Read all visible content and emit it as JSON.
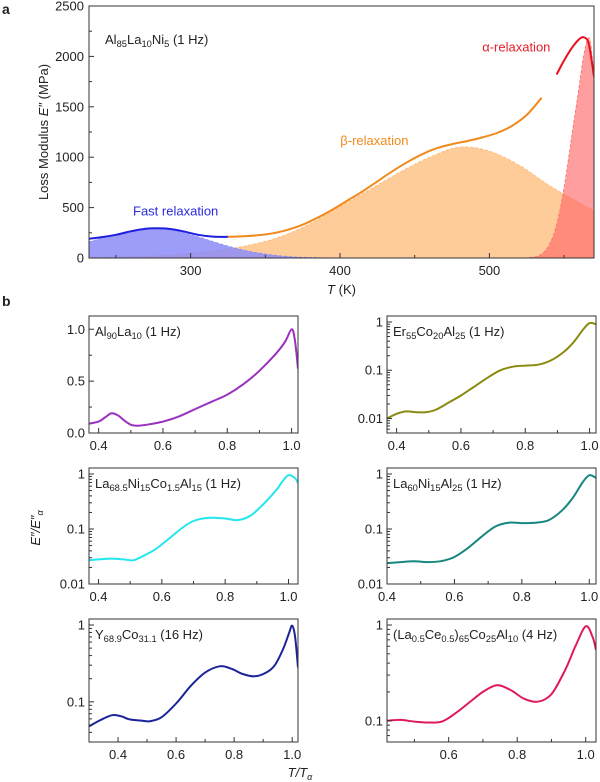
{
  "figure": {
    "panel_labels": [
      "a",
      "b"
    ],
    "shared_ylabel_b": "E″/E″α",
    "shared_xlabel_b": "T/Tα"
  },
  "chart_data": [
    {
      "id": "a",
      "type": "area",
      "title": "Al85La10Ni5 (1 Hz)",
      "title_parts": [
        [
          "Al",
          ""
        ],
        [
          "85",
          "sub"
        ],
        [
          "La",
          ""
        ],
        [
          "10",
          "sub"
        ],
        [
          "Ni",
          ""
        ],
        [
          "5",
          "sub"
        ],
        [
          " (1 Hz)",
          ""
        ]
      ],
      "xlabel": "T (K)",
      "ylabel": "Loss Modulus E″ (MPa)",
      "xlim": [
        232,
        570
      ],
      "ylim": [
        0,
        2500
      ],
      "xticks": [
        300,
        400,
        500
      ],
      "xminor": [
        250,
        350,
        450,
        550
      ],
      "yticks": [
        0,
        500,
        1000,
        1500,
        2000,
        2500
      ],
      "yminor": [
        250,
        750,
        1250,
        1750,
        2250
      ],
      "grid": false,
      "annotations": [
        {
          "text": "Fast relaxation",
          "color": "#2a2ae0",
          "x": 290,
          "y": 420
        },
        {
          "text": "β-relaxation",
          "color": "#f08a1c",
          "x": 423,
          "y": 1120
        },
        {
          "text": "α-relaxation",
          "color": "#e8202a",
          "x": 518,
          "y": 2050
        }
      ],
      "total_curve": {
        "x": [
          232,
          240,
          250,
          260,
          270,
          276,
          285,
          295,
          305,
          315,
          325,
          335,
          345,
          355,
          365,
          375,
          385,
          395,
          405,
          415,
          425,
          435,
          445,
          455,
          465,
          475,
          485,
          495,
          505,
          515,
          525,
          535,
          545,
          550,
          555,
          560,
          563,
          566,
          568,
          570
        ],
        "y": [
          190,
          205,
          230,
          265,
          290,
          295,
          290,
          265,
          230,
          212,
          210,
          215,
          225,
          245,
          280,
          330,
          400,
          480,
          570,
          660,
          760,
          860,
          950,
          1030,
          1090,
          1130,
          1160,
          1195,
          1240,
          1310,
          1420,
          1590,
          1820,
          1960,
          2080,
          2170,
          2190,
          2150,
          2000,
          1800
        ],
        "segments": [
          {
            "name": "fast",
            "color": "#1f1fe0",
            "x_range": [
              232,
              325
            ]
          },
          {
            "name": "beta",
            "color": "#f08a1c",
            "x_range": [
              325,
              540
            ]
          },
          {
            "name": "alpha",
            "color": "#e8101a",
            "x_range": [
              540,
              570
            ]
          }
        ]
      },
      "components": [
        {
          "name": "Fast relaxation",
          "fill": "#8c8cf8",
          "fill_opacity": 0.85,
          "x": [
            232,
            245,
            260,
            275,
            290,
            305,
            320,
            335,
            350,
            365,
            380,
            400
          ],
          "y": [
            160,
            215,
            270,
            295,
            270,
            210,
            140,
            80,
            40,
            15,
            5,
            0
          ]
        },
        {
          "name": "β-relaxation",
          "fill": "#fdb66e",
          "fill_opacity": 0.7,
          "x": [
            232,
            260,
            290,
            320,
            340,
            360,
            380,
            400,
            420,
            440,
            460,
            480,
            500,
            520,
            540,
            560,
            570
          ],
          "y": [
            5,
            12,
            35,
            80,
            130,
            210,
            340,
            510,
            680,
            850,
            1000,
            1100,
            1060,
            920,
            720,
            550,
            470
          ]
        },
        {
          "name": "α-relaxation",
          "fill": "#ff6a6a",
          "fill_opacity": 0.65,
          "x": [
            500,
            520,
            530,
            535,
            540,
            545,
            550,
            555,
            560,
            563,
            566,
            568,
            570
          ],
          "y": [
            0,
            0,
            10,
            40,
            130,
            330,
            700,
            1200,
            1700,
            2000,
            2180,
            2100,
            1800
          ]
        }
      ]
    },
    {
      "id": "b1",
      "type": "line",
      "title_parts": [
        [
          "Al",
          ""
        ],
        [
          "90",
          "sub"
        ],
        [
          "La",
          ""
        ],
        [
          "10",
          "sub"
        ],
        [
          " (1 Hz)",
          ""
        ]
      ],
      "title": "Al90La10 (1 Hz)",
      "color": "#9b30c0",
      "scale": "linear",
      "xlim": [
        0.37,
        1.02
      ],
      "ylim": [
        0.0,
        1.07
      ],
      "xticks": [
        0.4,
        0.6,
        0.8,
        1.0
      ],
      "xtick_labels": [
        "0.4",
        "0.6",
        "0.8",
        "1.0"
      ],
      "yticks": [
        0.0,
        0.5,
        1.0
      ],
      "ytick_labels": [
        "0.0",
        "0.5",
        "1.0"
      ],
      "x": [
        0.37,
        0.4,
        0.42,
        0.44,
        0.46,
        0.48,
        0.5,
        0.52,
        0.55,
        0.6,
        0.65,
        0.7,
        0.75,
        0.8,
        0.85,
        0.9,
        0.95,
        0.98,
        1.0,
        1.01,
        1.02
      ],
      "y": [
        0.09,
        0.11,
        0.15,
        0.19,
        0.17,
        0.12,
        0.08,
        0.07,
        0.08,
        0.11,
        0.16,
        0.23,
        0.3,
        0.37,
        0.47,
        0.6,
        0.76,
        0.88,
        1.0,
        0.9,
        0.62
      ]
    },
    {
      "id": "b2",
      "type": "line",
      "title_parts": [
        [
          "Er",
          ""
        ],
        [
          "55",
          "sub"
        ],
        [
          "Co",
          ""
        ],
        [
          "20",
          "sub"
        ],
        [
          "Al",
          ""
        ],
        [
          "25",
          "sub"
        ],
        [
          " (1 Hz)",
          ""
        ]
      ],
      "title": "Er55Co20Al25 (1 Hz)",
      "color": "#8a8a10",
      "scale": "log",
      "xlim": [
        0.37,
        1.02
      ],
      "ylim": [
        0.005,
        1.0
      ],
      "xticks": [
        0.4,
        0.6,
        0.8,
        1.0
      ],
      "xtick_labels": [
        "0.4",
        "0.6",
        "0.8",
        "1.0"
      ],
      "yticks": [
        0.01,
        0.1,
        1
      ],
      "ytick_labels": [
        "0.01",
        "0.1",
        "1"
      ],
      "x": [
        0.37,
        0.4,
        0.43,
        0.46,
        0.49,
        0.52,
        0.56,
        0.6,
        0.64,
        0.68,
        0.72,
        0.76,
        0.8,
        0.84,
        0.88,
        0.92,
        0.95,
        0.98,
        1.0,
        1.02
      ],
      "y": [
        0.01,
        0.0125,
        0.014,
        0.0135,
        0.0135,
        0.015,
        0.021,
        0.03,
        0.045,
        0.068,
        0.098,
        0.118,
        0.125,
        0.13,
        0.16,
        0.24,
        0.38,
        0.7,
        0.95,
        0.9
      ]
    },
    {
      "id": "b3",
      "type": "line",
      "title_parts": [
        [
          "La",
          ""
        ],
        [
          "68.5",
          "sub"
        ],
        [
          "Ni",
          ""
        ],
        [
          "15",
          "sub"
        ],
        [
          "Co",
          ""
        ],
        [
          "1.5",
          "sub"
        ],
        [
          "Al",
          ""
        ],
        [
          "15",
          "sub"
        ],
        [
          " (1 Hz)",
          ""
        ]
      ],
      "title": "La68.5Ni15Co1.5Al15 (1 Hz)",
      "color": "#22e6f0",
      "scale": "log",
      "xlim": [
        0.37,
        1.03
      ],
      "ylim": [
        0.01,
        1.0
      ],
      "xticks": [
        0.4,
        0.6,
        0.8,
        1.0
      ],
      "xtick_labels": [
        "0.4",
        "0.6",
        "0.8",
        "1.0"
      ],
      "yticks": [
        0.01,
        0.1,
        1
      ],
      "ytick_labels": [
        "0.01",
        "0.1",
        "1"
      ],
      "x": [
        0.37,
        0.4,
        0.44,
        0.48,
        0.51,
        0.54,
        0.58,
        0.62,
        0.66,
        0.7,
        0.75,
        0.8,
        0.84,
        0.88,
        0.92,
        0.96,
        0.98,
        1.0,
        1.02,
        1.03
      ],
      "y": [
        0.027,
        0.028,
        0.029,
        0.028,
        0.027,
        0.032,
        0.043,
        0.065,
        0.1,
        0.14,
        0.16,
        0.155,
        0.145,
        0.175,
        0.28,
        0.5,
        0.72,
        0.95,
        0.85,
        0.68
      ]
    },
    {
      "id": "b4",
      "type": "line",
      "title_parts": [
        [
          "La",
          ""
        ],
        [
          "60",
          "sub"
        ],
        [
          "Ni",
          ""
        ],
        [
          "15",
          "sub"
        ],
        [
          "Al",
          ""
        ],
        [
          "25",
          "sub"
        ],
        [
          " (1 Hz)",
          ""
        ]
      ],
      "title": "La60Ni15Al25 (1 Hz)",
      "color": "#16877e",
      "scale": "log",
      "xlim": [
        0.4,
        1.02
      ],
      "ylim": [
        0.01,
        1.0
      ],
      "xticks": [
        0.4,
        0.6,
        0.8,
        1.0
      ],
      "xtick_labels": [
        "0.4",
        "0.6",
        "0.8",
        "1.0"
      ],
      "yticks": [
        0.01,
        0.1,
        1
      ],
      "ytick_labels": [
        "0.01",
        "0.1",
        "1"
      ],
      "x": [
        0.4,
        0.44,
        0.48,
        0.52,
        0.56,
        0.6,
        0.64,
        0.68,
        0.72,
        0.76,
        0.8,
        0.84,
        0.88,
        0.92,
        0.95,
        0.98,
        1.0,
        1.02
      ],
      "y": [
        0.024,
        0.025,
        0.026,
        0.025,
        0.026,
        0.031,
        0.045,
        0.072,
        0.11,
        0.13,
        0.128,
        0.13,
        0.145,
        0.22,
        0.36,
        0.7,
        0.95,
        0.85
      ]
    },
    {
      "id": "b5",
      "type": "line",
      "title_parts": [
        [
          "Y",
          ""
        ],
        [
          "68.9",
          "sub"
        ],
        [
          "Co",
          ""
        ],
        [
          "31.1",
          "sub"
        ],
        [
          " (16 Hz)",
          ""
        ]
      ],
      "title": "Y68.9Co31.1 (16 Hz)",
      "color": "#1a239a",
      "scale": "log",
      "xlim": [
        0.3,
        1.02
      ],
      "ylim": [
        0.03,
        1.0
      ],
      "xticks": [
        0.4,
        0.6,
        0.8,
        1.0
      ],
      "xtick_labels": [
        "0.4",
        "0.6",
        "0.8",
        "1.0"
      ],
      "yticks": [
        0.1,
        1
      ],
      "ytick_labels": [
        "0.1",
        "1"
      ],
      "x": [
        0.3,
        0.34,
        0.38,
        0.41,
        0.44,
        0.48,
        0.51,
        0.55,
        0.6,
        0.65,
        0.7,
        0.75,
        0.79,
        0.83,
        0.87,
        0.91,
        0.94,
        0.97,
        0.99,
        1.0,
        1.01,
        1.02
      ],
      "y": [
        0.048,
        0.058,
        0.067,
        0.065,
        0.059,
        0.057,
        0.056,
        0.063,
        0.095,
        0.16,
        0.24,
        0.29,
        0.27,
        0.23,
        0.215,
        0.24,
        0.3,
        0.5,
        0.8,
        0.98,
        0.7,
        0.28
      ]
    },
    {
      "id": "b6",
      "type": "line",
      "title_parts": [
        [
          "(La",
          ""
        ],
        [
          "0.5",
          "sub"
        ],
        [
          "Ce",
          ""
        ],
        [
          "0.5",
          "sub"
        ],
        [
          ")",
          ""
        ],
        [
          "65",
          "sub"
        ],
        [
          "Co",
          ""
        ],
        [
          "25",
          "sub"
        ],
        [
          "Al",
          ""
        ],
        [
          "10",
          "sub"
        ],
        [
          " (4 Hz)",
          ""
        ]
      ],
      "title": "(La0.5Ce0.5)65Co25Al10 (4 Hz)",
      "color": "#e01a5a",
      "scale": "log",
      "xlim": [
        0.42,
        1.03
      ],
      "ylim": [
        0.06,
        1.0
      ],
      "xticks": [
        0.6,
        0.8,
        1.0
      ],
      "xtick_labels": [
        "0.6",
        "0.8",
        "1.0"
      ],
      "yticks": [
        0.1,
        1
      ],
      "ytick_labels": [
        "0.1",
        "1"
      ],
      "x": [
        0.42,
        0.46,
        0.5,
        0.54,
        0.58,
        0.62,
        0.66,
        0.7,
        0.74,
        0.78,
        0.82,
        0.86,
        0.9,
        0.94,
        0.97,
        1.0,
        1.02,
        1.03
      ],
      "y": [
        0.1,
        0.102,
        0.098,
        0.096,
        0.098,
        0.12,
        0.155,
        0.2,
        0.235,
        0.21,
        0.17,
        0.158,
        0.19,
        0.34,
        0.6,
        0.97,
        0.75,
        0.55
      ]
    }
  ]
}
